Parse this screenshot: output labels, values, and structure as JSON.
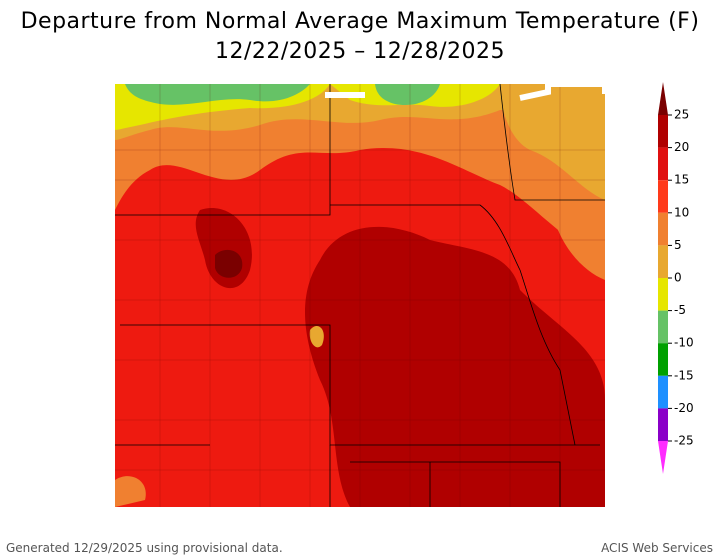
{
  "title": "Departure from Normal Average Maximum Temperature (F)",
  "subtitle": "12/22/2025 – 12/28/2025",
  "legend": {
    "ticks": [
      25,
      20,
      15,
      10,
      5,
      0,
      -5,
      -10,
      -15,
      -20,
      -25
    ],
    "colors": [
      "#7a0000",
      "#b00000",
      "#e01010",
      "#ff3a1a",
      "#f08030",
      "#e8a830",
      "#e6e600",
      "#66c266",
      "#00a000",
      "#1e90ff",
      "#8a00c8",
      "#c000c0",
      "#ff2cff"
    ]
  },
  "footer": {
    "left": "Generated 12/29/2025 using provisional data.",
    "right": "ACIS Web Services"
  }
}
